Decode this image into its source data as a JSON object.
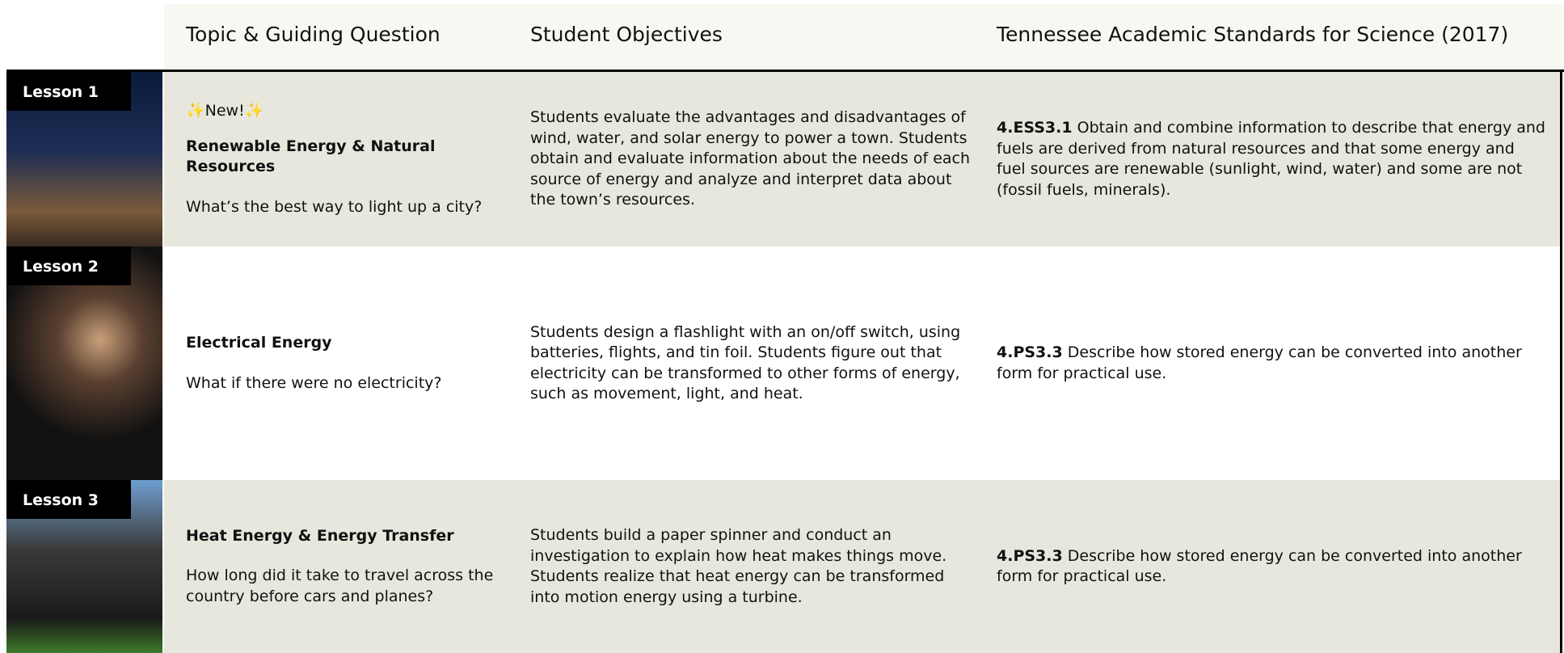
{
  "header": {
    "columns": [
      "Topic & Guiding Question",
      "Student Objectives",
      "Tennessee Academic Standards for Science (2017)"
    ]
  },
  "lessons": [
    {
      "label": "Lesson 1",
      "badge": "✨New!✨",
      "title": "Renewable Energy & Natural Resources",
      "question": "What’s the best way to light up a city?",
      "objectives": "Students evaluate the advantages and disadvantages of wind, water, and solar energy to power a town. Students obtain and evaluate information about the needs of each source of energy and analyze and interpret data about the town’s resources.",
      "standard_code": "4.ESS3.1",
      "standard_text": "Obtain and combine information to describe that energy and fuels are derived from natural resources and that some energy and fuel sources are renewable (sunlight, wind, water) and some are not (fossil fuels, minerals)."
    },
    {
      "label": "Lesson 2",
      "title": "Electrical Energy",
      "question": "What if there were no electricity?",
      "objectives": "Students design a flashlight with an on/off switch, using batteries, flights, and tin foil. Students figure out that electricity can be transformed to other forms of energy, such as movement, light, and heat.",
      "standard_code": "4.PS3.3",
      "standard_text": "Describe how stored energy can be converted into another form for practical use."
    },
    {
      "label": "Lesson 3",
      "title": "Heat Energy & Energy Transfer",
      "question": "How long did it take to travel across the country before cars and planes?",
      "objectives": "Students build a paper spinner and conduct an investigation to explain how heat makes things move. Students realize that heat energy can be transformed into motion energy using a turbine.",
      "standard_code": "4.PS3.3",
      "standard_text": "Describe how stored energy can be converted into another form for practical use."
    }
  ]
}
